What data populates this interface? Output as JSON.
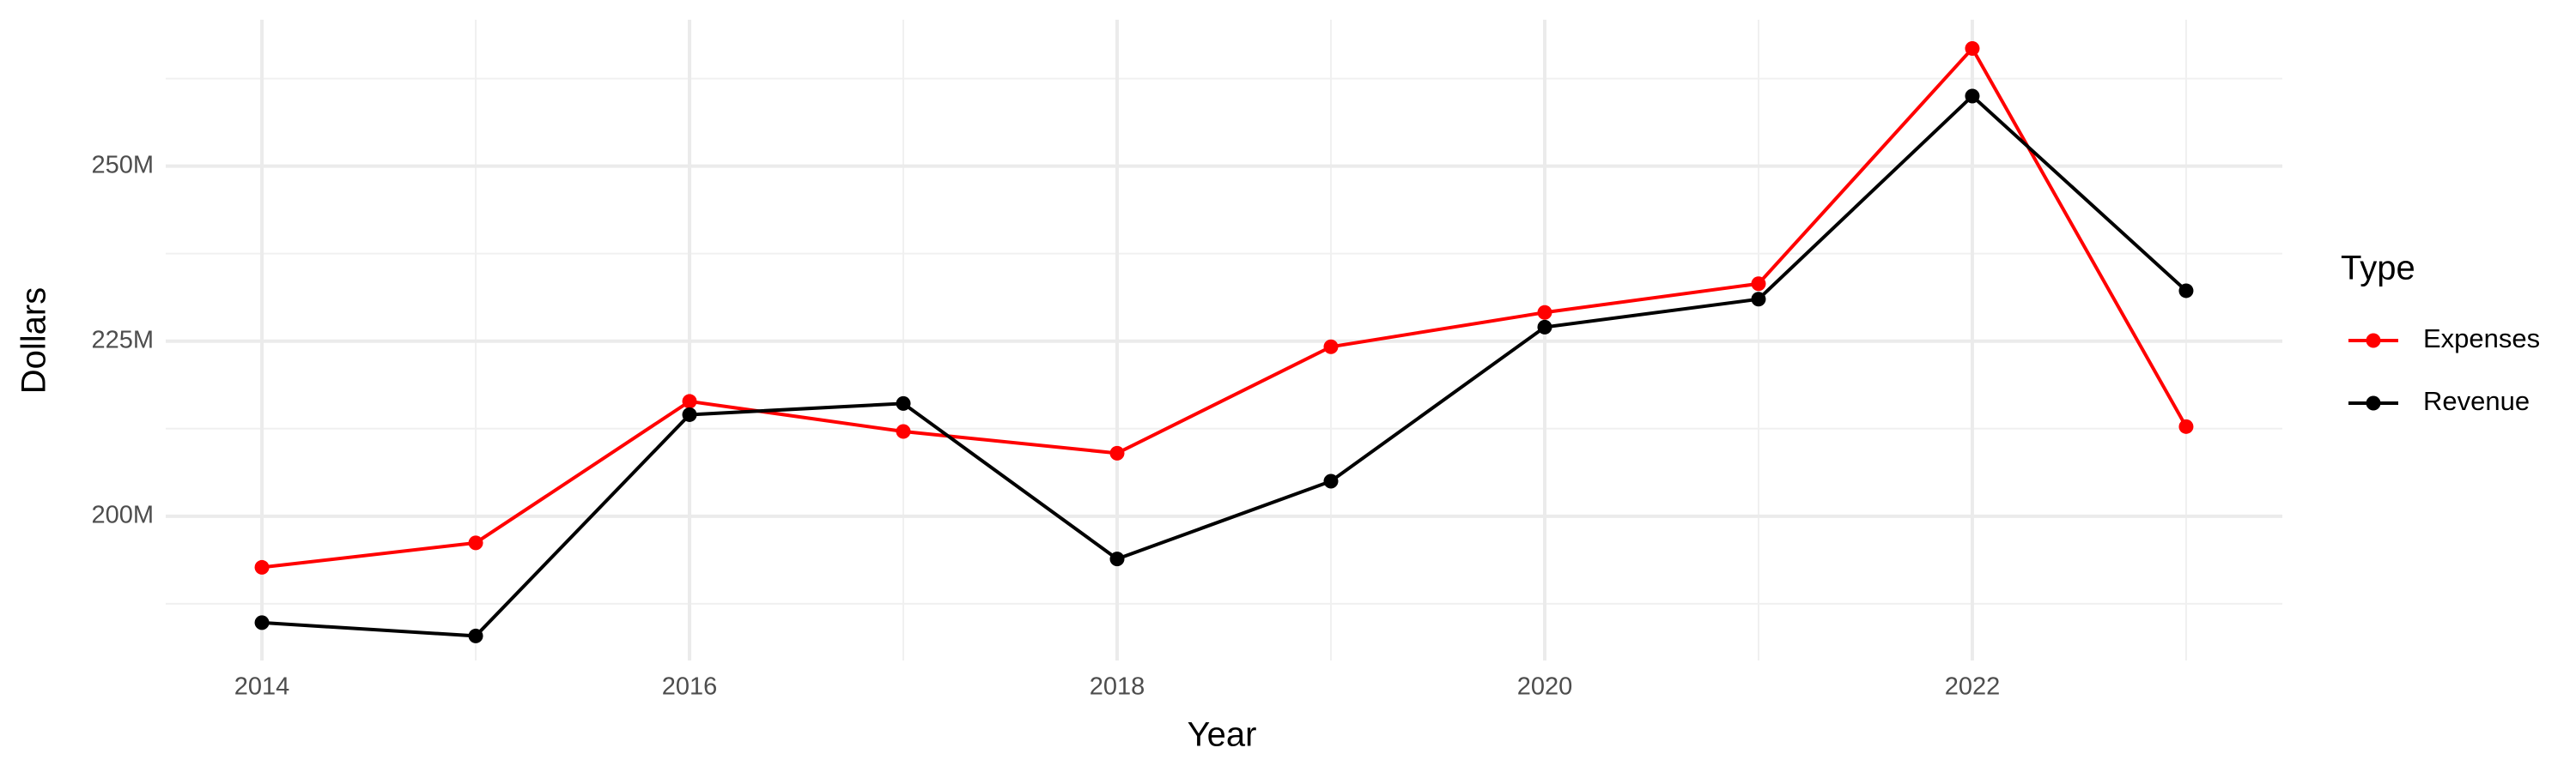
{
  "chart_data": {
    "type": "line",
    "x_label": "Year",
    "y_label": "Dollars",
    "legend_title": "Type",
    "legend": "right",
    "grid": true,
    "x": [
      2014,
      2015,
      2016,
      2017,
      2018,
      2019,
      2020,
      2021,
      2022,
      2023
    ],
    "series": [
      {
        "name": "Expenses",
        "color": "#ff0000",
        "values": [
          192700000,
          196200000,
          216400000,
          212100000,
          209000000,
          224200000,
          229100000,
          233200000,
          266800000,
          212800000
        ]
      },
      {
        "name": "Revenue",
        "color": "#000000",
        "values": [
          184800000,
          182900000,
          214500000,
          216100000,
          193900000,
          205000000,
          227000000,
          231000000,
          260000000,
          232200000
        ]
      }
    ],
    "xlim": [
      2013.55,
      2023.45
    ],
    "xticks": [
      2014,
      2016,
      2018,
      2020,
      2022
    ],
    "ylim": [
      179400000,
      270900000
    ],
    "yticks": [
      {
        "value": 200000000,
        "label": "200M"
      },
      {
        "value": 225000000,
        "label": "225M"
      },
      {
        "value": 250000000,
        "label": "250M"
      }
    ]
  }
}
